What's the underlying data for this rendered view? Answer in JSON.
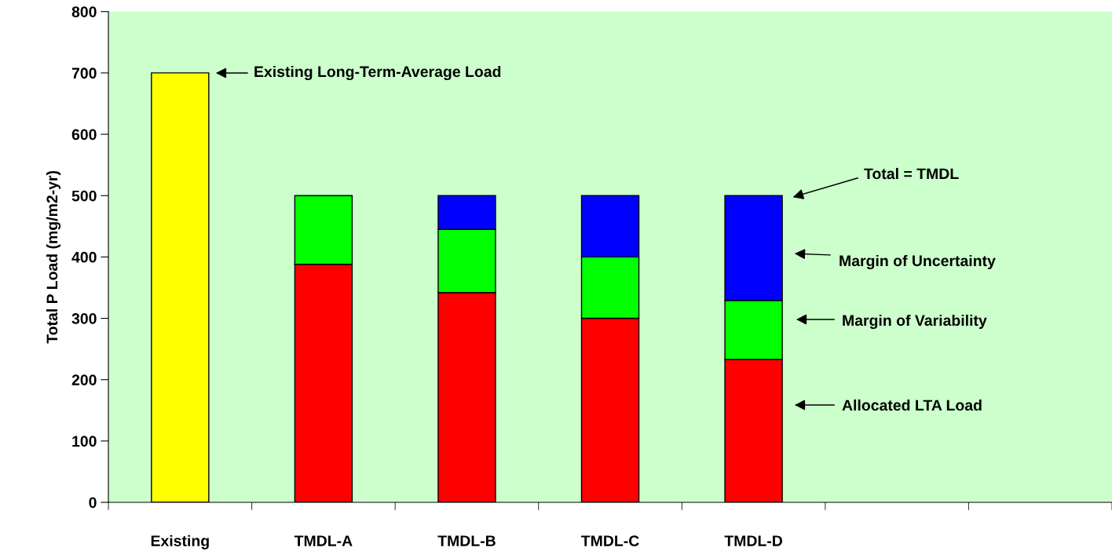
{
  "chart_data": {
    "type": "bar",
    "stacked": true,
    "ylabel": "Total P Load (mg/m2-yr)",
    "categories": [
      "Existing",
      "TMDL-A",
      "TMDL-B",
      "TMDL-C",
      "TMDL-D",
      null,
      null
    ],
    "series": [
      {
        "color": "#ffff00",
        "values": [
          700,
          null,
          null,
          null,
          null,
          null,
          null
        ]
      },
      {
        "color": "#ff0000",
        "values": [
          null,
          388,
          342,
          300,
          233,
          null,
          null
        ]
      },
      {
        "color": "#00ff00",
        "values": [
          null,
          112,
          103,
          100,
          96,
          null,
          null
        ]
      },
      {
        "color": "#0000ff",
        "values": [
          null,
          null,
          55,
          100,
          171,
          null,
          null
        ]
      }
    ],
    "ylim": [
      0,
      800
    ],
    "yticks": [
      0,
      100,
      200,
      300,
      400,
      500,
      600,
      700,
      800
    ],
    "grid": false,
    "annotations": [
      "Existing Long-Term-Average Load",
      "Total = TMDL",
      "Margin of Uncertainty",
      "Margin of Variability",
      "Allocated LTA Load"
    ]
  }
}
